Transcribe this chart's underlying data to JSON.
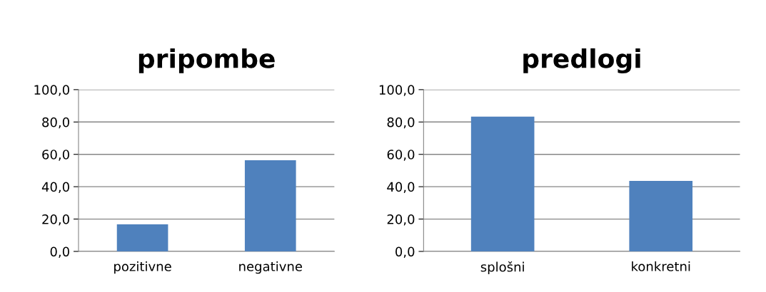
{
  "chart_data": [
    {
      "type": "bar",
      "title": "pripombe",
      "categories": [
        "pozitivne",
        "negativne"
      ],
      "values": [
        16.7,
        56.4
      ],
      "color": "#4f81bd",
      "ylim": [
        0,
        100
      ],
      "yticks": [
        {
          "value": 0,
          "label": "0,0"
        },
        {
          "value": 20,
          "label": "20,0"
        },
        {
          "value": 40,
          "label": "40,0"
        },
        {
          "value": 60,
          "label": "60,0"
        },
        {
          "value": 80,
          "label": "80,0"
        },
        {
          "value": 100,
          "label": "100,0"
        }
      ],
      "grid": "y",
      "legend": false
    },
    {
      "type": "bar",
      "title": "predlogi",
      "categories": [
        "splošni",
        "konkretni"
      ],
      "values": [
        83.3,
        43.6
      ],
      "color": "#4f81bd",
      "ylim": [
        0,
        100
      ],
      "yticks": [
        {
          "value": 0,
          "label": "0,0"
        },
        {
          "value": 20,
          "label": "20,0"
        },
        {
          "value": 40,
          "label": "40,0"
        },
        {
          "value": 60,
          "label": "60,0"
        },
        {
          "value": 80,
          "label": "80,0"
        },
        {
          "value": 100,
          "label": "100,0"
        }
      ],
      "grid": "y",
      "legend": false
    }
  ]
}
